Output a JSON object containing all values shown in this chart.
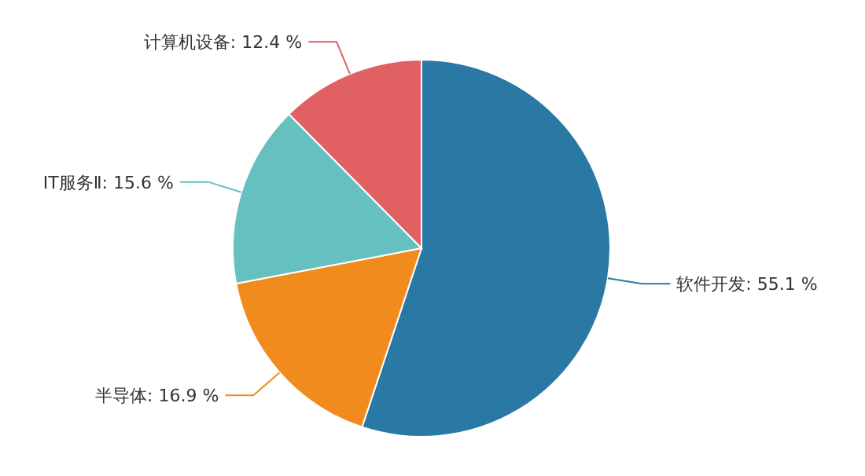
{
  "chart_data": {
    "type": "pie",
    "categories": [
      "软件开发",
      "半导体",
      "IT服务Ⅱ",
      "计算机设备"
    ],
    "values": [
      55.1,
      16.9,
      15.6,
      12.4
    ],
    "value_labels": [
      "55.1 %",
      "16.9 %",
      "15.6 %",
      "12.4 %"
    ],
    "colors": [
      "#2a78a4",
      "#f28b1e",
      "#65c0bf",
      "#e06064"
    ]
  }
}
